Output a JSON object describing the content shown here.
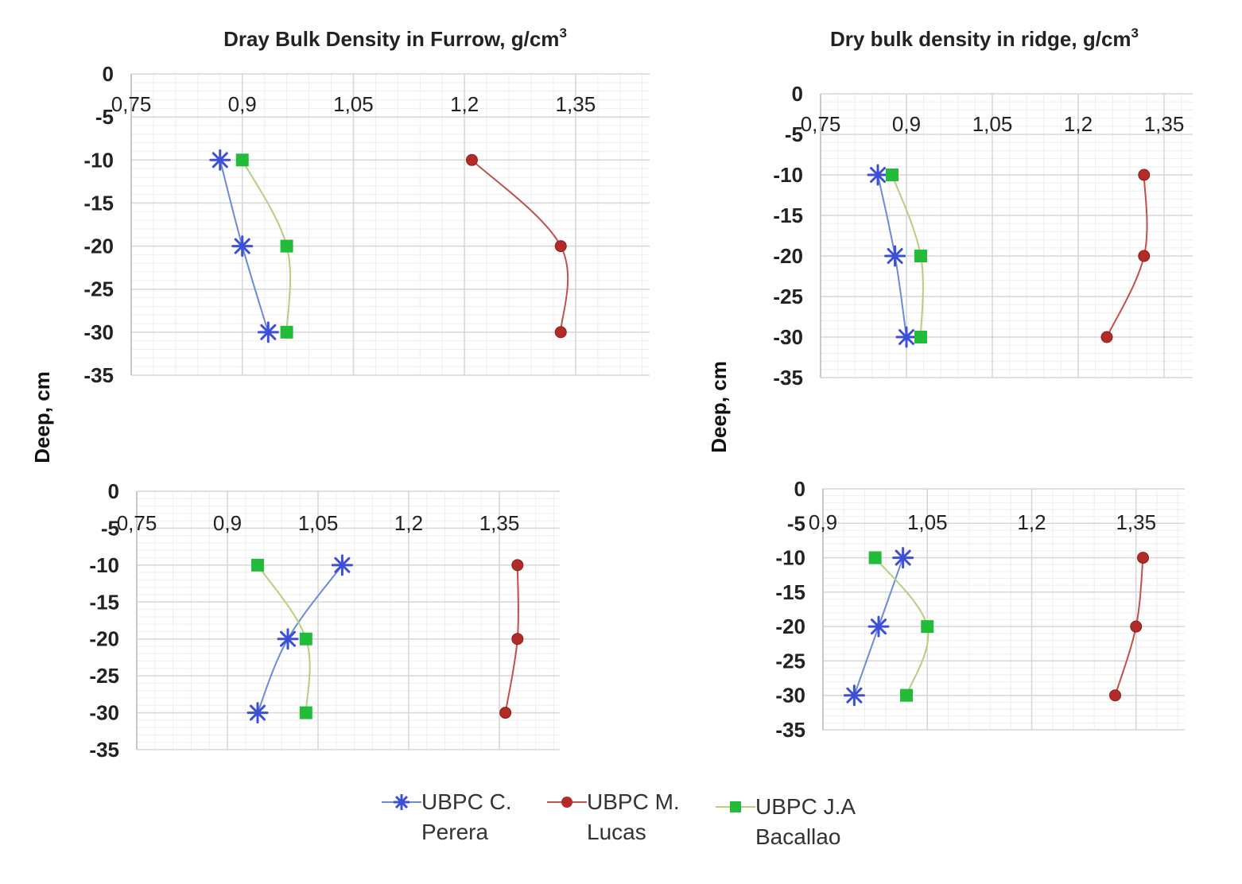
{
  "ylabel": "Deep, cm",
  "colors": {
    "perera": "#3d4fd6",
    "lucas": "#b22b28",
    "bacallao": "#22bb3a",
    "perera_line": "#6b8bd6",
    "lucas_line": "#c0504d",
    "bacallao_line": "#b6cf7c"
  },
  "legend": [
    {
      "key": "perera",
      "label": "UBPC C.\nPerera",
      "marker": "asterisk"
    },
    {
      "key": "lucas",
      "label": "UBPC M.\nLucas",
      "marker": "circle"
    },
    {
      "key": "bacallao",
      "label": "UBPC J.A\nBacallao",
      "marker": "square"
    }
  ],
  "chart_data": [
    {
      "type": "line",
      "title": "Dray Bulk Density in Furrow, g/cm",
      "title_superscript": "3",
      "x_axis_position": "top",
      "xlim": [
        0.75,
        1.45
      ],
      "ylim": [
        -35,
        0
      ],
      "xticks": [
        0.75,
        0.9,
        1.05,
        1.2,
        1.35
      ],
      "xtick_labels": [
        "0,75",
        "0,9",
        "1,05",
        "1,2",
        "1,35"
      ],
      "yticks": [
        0,
        -5,
        -10,
        -15,
        -20,
        -25,
        -30,
        -35
      ],
      "ytick_labels": [
        "0",
        "-5",
        "-10",
        "-15",
        "-20",
        "-25",
        "-30",
        "-35"
      ],
      "series": [
        {
          "key": "perera",
          "marker": "asterisk",
          "points": [
            [
              0.87,
              -10
            ],
            [
              0.9,
              -20
            ],
            [
              0.935,
              -30
            ]
          ]
        },
        {
          "key": "lucas",
          "marker": "circle",
          "points": [
            [
              1.21,
              -10
            ],
            [
              1.33,
              -20
            ],
            [
              1.33,
              -30
            ]
          ]
        },
        {
          "key": "bacallao",
          "marker": "square",
          "points": [
            [
              0.9,
              -10
            ],
            [
              0.96,
              -20
            ],
            [
              0.96,
              -30
            ]
          ]
        }
      ]
    },
    {
      "type": "line",
      "title": "Dry bulk density in ridge, g/cm",
      "title_superscript": "3",
      "x_axis_position": "top",
      "xlim": [
        0.75,
        1.4
      ],
      "ylim": [
        -35,
        0
      ],
      "xticks": [
        0.75,
        0.9,
        1.05,
        1.2,
        1.35
      ],
      "xtick_labels": [
        "0,75",
        "0,9",
        "1,05",
        "1,2",
        "1,35"
      ],
      "yticks": [
        0,
        -5,
        -10,
        -15,
        -20,
        -25,
        -30,
        -35
      ],
      "ytick_labels": [
        "0",
        "-5",
        "-10",
        "-15",
        "-20",
        "-25",
        "-30",
        "-35"
      ],
      "series": [
        {
          "key": "perera",
          "marker": "asterisk",
          "points": [
            [
              0.85,
              -10
            ],
            [
              0.88,
              -20
            ],
            [
              0.9,
              -30
            ]
          ]
        },
        {
          "key": "lucas",
          "marker": "circle",
          "points": [
            [
              1.315,
              -10
            ],
            [
              1.315,
              -20
            ],
            [
              1.25,
              -30
            ]
          ]
        },
        {
          "key": "bacallao",
          "marker": "square",
          "points": [
            [
              0.875,
              -10
            ],
            [
              0.925,
              -20
            ],
            [
              0.925,
              -30
            ]
          ]
        }
      ]
    },
    {
      "type": "line",
      "title": "",
      "x_axis_position": "top",
      "xlim": [
        0.75,
        1.45
      ],
      "ylim": [
        -35,
        0
      ],
      "xticks": [
        0.75,
        0.9,
        1.05,
        1.2,
        1.35
      ],
      "xtick_labels": [
        "0,75",
        "0,9",
        "1,05",
        "1,2",
        "1,35"
      ],
      "yticks": [
        0,
        -5,
        -10,
        -15,
        -20,
        -25,
        -30,
        -35
      ],
      "ytick_labels": [
        "0",
        "-5",
        "-10",
        "-15",
        "-20",
        "-25",
        "-30",
        "-35"
      ],
      "series": [
        {
          "key": "perera",
          "marker": "asterisk",
          "points": [
            [
              1.09,
              -10
            ],
            [
              1.0,
              -20
            ],
            [
              0.95,
              -30
            ]
          ]
        },
        {
          "key": "lucas",
          "marker": "circle",
          "points": [
            [
              1.38,
              -10
            ],
            [
              1.38,
              -20
            ],
            [
              1.36,
              -30
            ]
          ]
        },
        {
          "key": "bacallao",
          "marker": "square",
          "points": [
            [
              0.95,
              -10
            ],
            [
              1.03,
              -20
            ],
            [
              1.03,
              -30
            ]
          ]
        }
      ]
    },
    {
      "type": "line",
      "title": "",
      "x_axis_position": "top",
      "xlim": [
        0.9,
        1.42
      ],
      "ylim": [
        -35,
        0
      ],
      "xticks": [
        0.9,
        1.05,
        1.2,
        1.35
      ],
      "xtick_labels": [
        "0,9",
        "1,05",
        "1,2",
        "1,35"
      ],
      "yticks": [
        0,
        -5,
        -10,
        -15,
        -20,
        -25,
        -30,
        -35
      ],
      "ytick_labels": [
        "0",
        "-5",
        "-10",
        "-15",
        "-20",
        "-25",
        "-30",
        "-35"
      ],
      "series": [
        {
          "key": "perera",
          "marker": "asterisk",
          "points": [
            [
              1.015,
              -10
            ],
            [
              0.98,
              -20
            ],
            [
              0.945,
              -30
            ]
          ]
        },
        {
          "key": "lucas",
          "marker": "circle",
          "points": [
            [
              1.36,
              -10
            ],
            [
              1.35,
              -20
            ],
            [
              1.32,
              -30
            ]
          ]
        },
        {
          "key": "bacallao",
          "marker": "square",
          "points": [
            [
              0.975,
              -10
            ],
            [
              1.05,
              -20
            ],
            [
              1.02,
              -30
            ]
          ]
        }
      ]
    }
  ]
}
